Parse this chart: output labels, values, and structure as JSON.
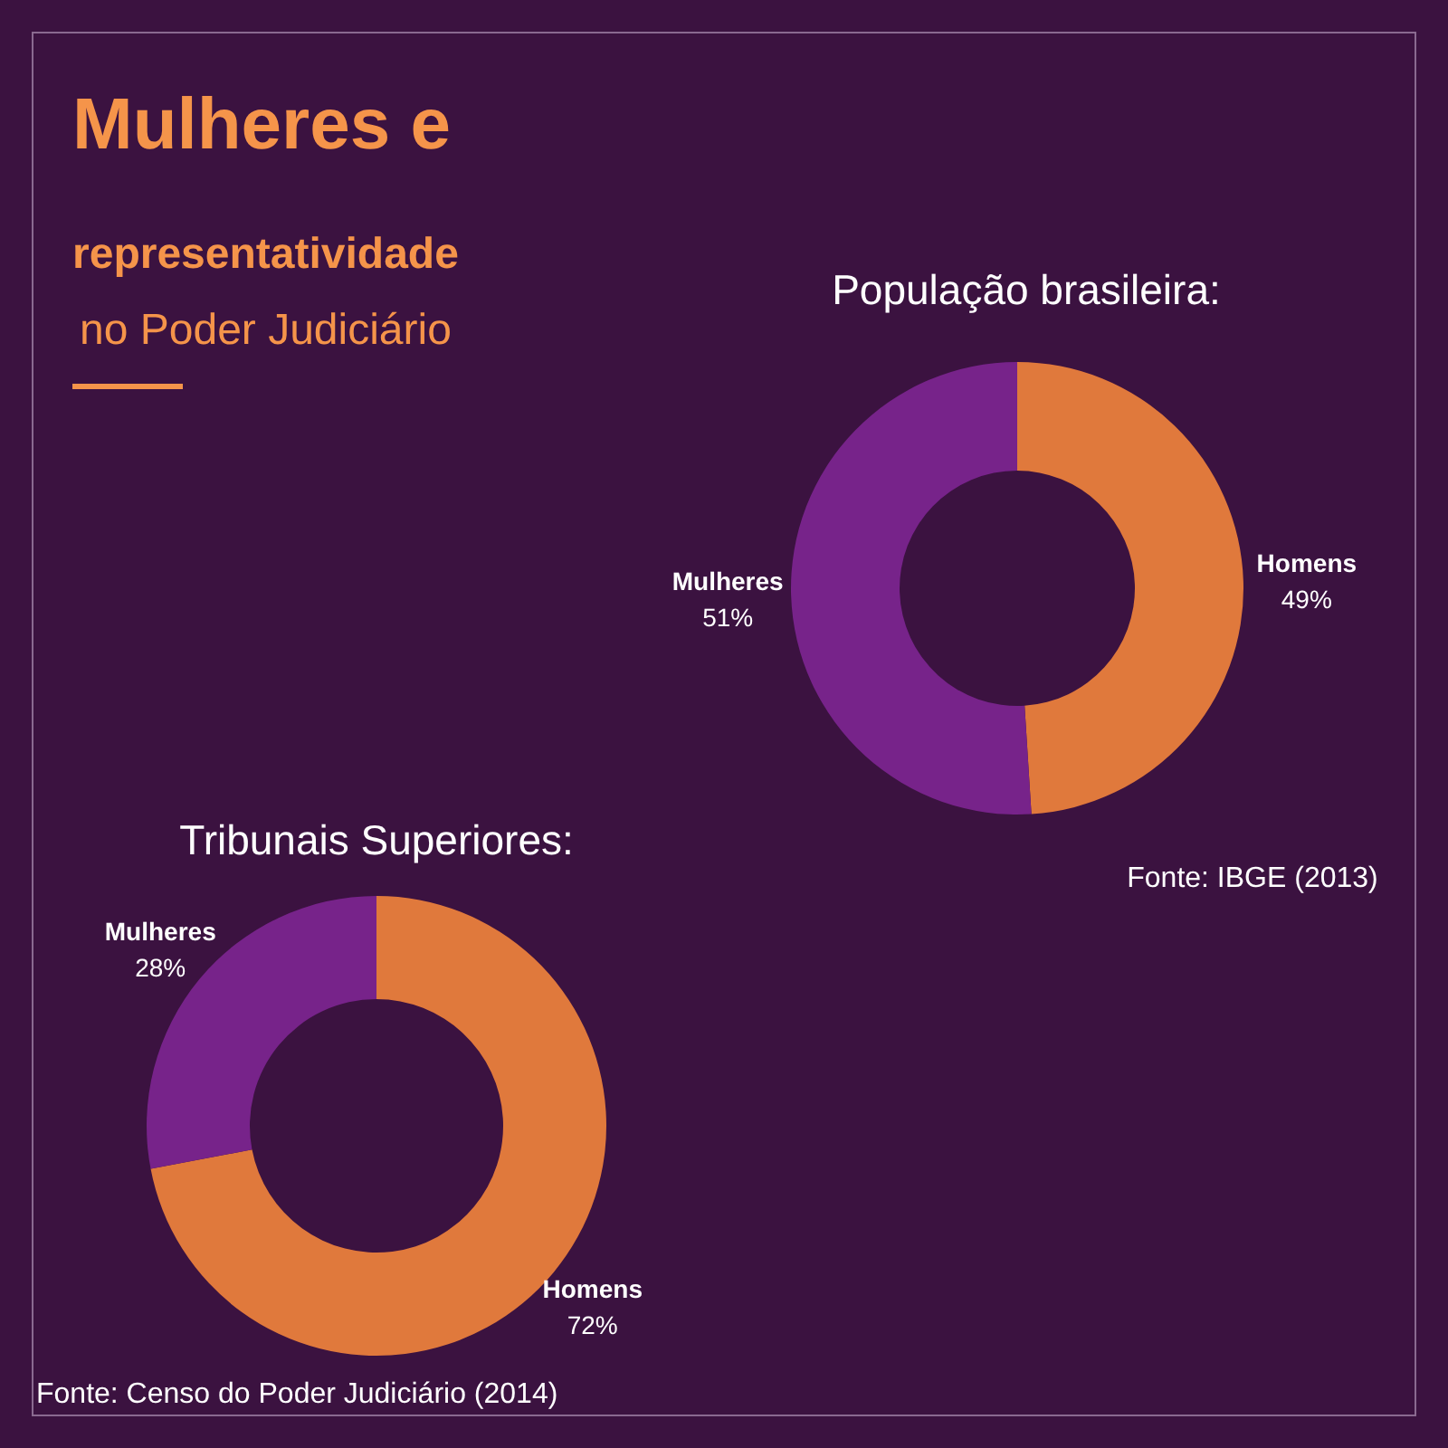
{
  "chart_data": [
    {
      "type": "donut",
      "title": "Mulheres e representatividade no Poder Judiciário",
      "subtitle": "População brasileira:",
      "categories": [
        "Homens",
        "Mulheres"
      ],
      "values": [
        49,
        51
      ],
      "value_labels": [
        "49%",
        "51%"
      ],
      "colors": [
        "#e0793c",
        "#77238a"
      ],
      "annotations": [
        "Fonte: IBGE (2013)"
      ]
    },
    {
      "type": "donut",
      "title": "Tribunais Superiores:",
      "categories": [
        "Homens",
        "Mulheres"
      ],
      "values": [
        72,
        28
      ],
      "value_labels": [
        "72%",
        "28%"
      ],
      "colors": [
        "#e0793c",
        "#77238a"
      ],
      "annotations": [
        "Fonte: Censo do Poder Judiciário (2014)"
      ]
    }
  ]
}
